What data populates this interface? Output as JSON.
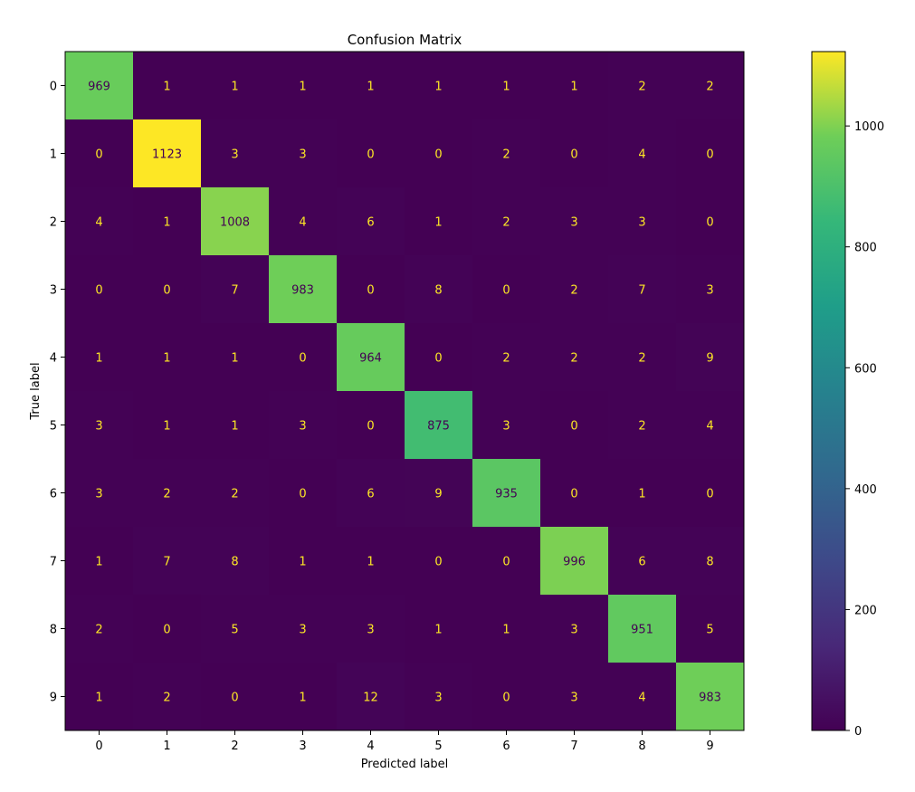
{
  "chart_data": {
    "type": "heatmap",
    "title": "Confusion Matrix",
    "xlabel": "Predicted label",
    "ylabel": "True label",
    "x_categories": [
      "0",
      "1",
      "2",
      "3",
      "4",
      "5",
      "6",
      "7",
      "8",
      "9"
    ],
    "y_categories": [
      "0",
      "1",
      "2",
      "3",
      "4",
      "5",
      "6",
      "7",
      "8",
      "9"
    ],
    "values": [
      [
        969,
        1,
        1,
        1,
        1,
        1,
        1,
        1,
        2,
        2
      ],
      [
        0,
        1123,
        3,
        3,
        0,
        0,
        2,
        0,
        4,
        0
      ],
      [
        4,
        1,
        1008,
        4,
        6,
        1,
        2,
        3,
        3,
        0
      ],
      [
        0,
        0,
        7,
        983,
        0,
        8,
        0,
        2,
        7,
        3
      ],
      [
        1,
        1,
        1,
        0,
        964,
        0,
        2,
        2,
        2,
        9
      ],
      [
        3,
        1,
        1,
        3,
        0,
        875,
        3,
        0,
        2,
        4
      ],
      [
        3,
        2,
        2,
        0,
        6,
        9,
        935,
        0,
        1,
        0
      ],
      [
        1,
        7,
        8,
        1,
        1,
        0,
        0,
        996,
        6,
        8
      ],
      [
        2,
        0,
        5,
        3,
        3,
        1,
        1,
        3,
        951,
        5
      ],
      [
        1,
        2,
        0,
        1,
        12,
        3,
        0,
        3,
        4,
        983
      ]
    ],
    "colormap": "viridis",
    "value_range": [
      0,
      1123
    ],
    "colorbar_ticks": [
      "0",
      "200",
      "400",
      "600",
      "800",
      "1000"
    ],
    "text_color_low": "#fde725",
    "text_color_high": "#440154",
    "grid": false,
    "colorbar_position": "right"
  }
}
